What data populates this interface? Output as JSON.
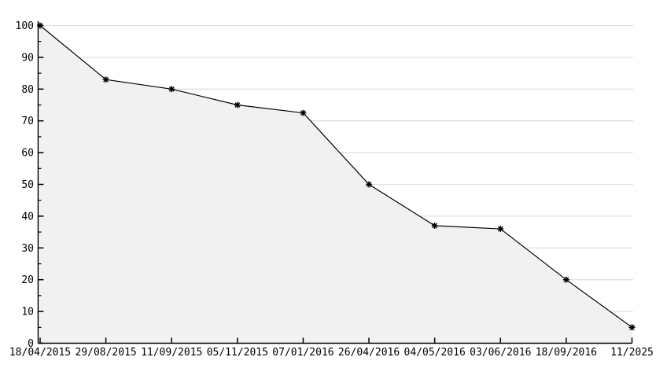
{
  "chart_data": {
    "type": "area",
    "title": "",
    "xlabel": "",
    "ylabel": "",
    "categories": [
      "18/04/2015",
      "29/08/2015",
      "11/09/2015",
      "05/11/2015",
      "07/01/2016",
      "26/04/2016",
      "04/05/2016",
      "03/06/2016",
      "18/09/2016",
      "11/2025"
    ],
    "values": [
      100,
      83,
      80,
      75,
      72.5,
      50,
      37,
      36,
      20,
      5
    ],
    "ylim": [
      0,
      100
    ],
    "y_major_step": 10,
    "y_minor_step": 5,
    "y_tick_labels": [
      "0",
      "10",
      "20",
      "30",
      "40",
      "50",
      "60",
      "70",
      "80",
      "90",
      "100"
    ],
    "grid": true,
    "legend_position": "none",
    "marker": "asterisk",
    "colors": {
      "line": "#000000",
      "area_fill": "#f1f1f1",
      "grid": "#e0e0e0",
      "axis": "#000000",
      "background": "#ffffff",
      "text": "#000000"
    }
  }
}
